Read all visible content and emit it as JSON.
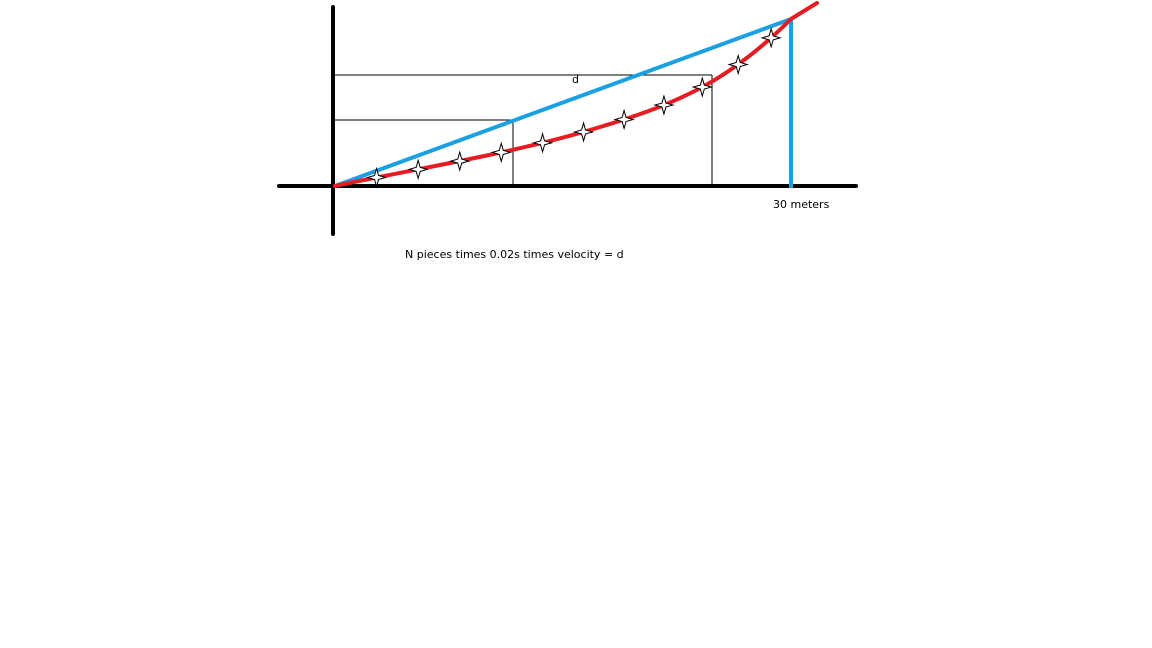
{
  "diagram": {
    "labels": {
      "distance": "d",
      "end_marker": "30 meters",
      "formula": "N pieces times 0.02s times velocity = d"
    },
    "colors": {
      "axes": "#000000",
      "straight_line": "#1ba1e2",
      "curve": "#e51c23",
      "guides": "#000000",
      "markers": "#000000",
      "background": "#ffffff"
    },
    "sample_marker_count": 11
  }
}
